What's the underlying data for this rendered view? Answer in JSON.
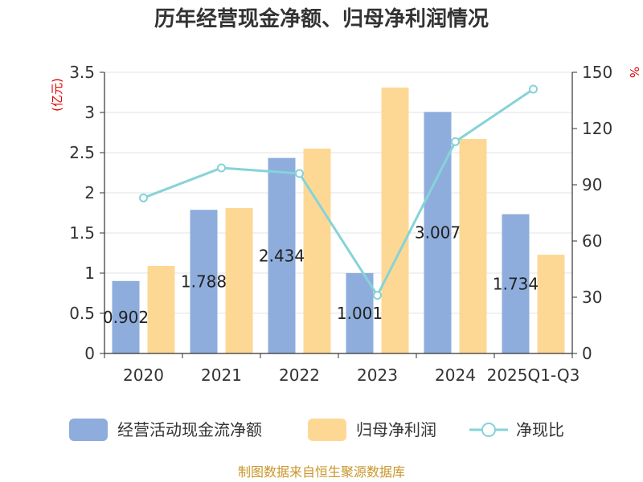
{
  "chart_data": {
    "type": "bar",
    "title": "历年经营现金净额、归母净利润情况",
    "categories": [
      "2020",
      "2021",
      "2022",
      "2023",
      "2024",
      "2025Q1-Q3"
    ],
    "series": [
      {
        "name": "经营活动现金流净额",
        "type": "bar",
        "axis": "left",
        "color": "#8eaddc",
        "values": [
          0.902,
          1.788,
          2.434,
          1.001,
          3.007,
          1.734
        ],
        "labels": [
          "0.902",
          "1.788",
          "2.434",
          "1.001",
          "3.007",
          "1.734"
        ]
      },
      {
        "name": "归母净利润",
        "type": "bar",
        "axis": "left",
        "color": "#fdd895",
        "values": [
          1.09,
          1.81,
          2.55,
          3.31,
          2.67,
          1.23
        ]
      },
      {
        "name": "净现比",
        "type": "line",
        "axis": "right",
        "color": "#86d3d8",
        "values": [
          83,
          99,
          96,
          31,
          113,
          141
        ]
      }
    ],
    "left_axis": {
      "unit": "(亿元)",
      "ylim": [
        0,
        3.5
      ],
      "ticks": [
        "0",
        "0.5",
        "1",
        "1.5",
        "2",
        "2.5",
        "3",
        "3.5"
      ]
    },
    "right_axis": {
      "unit": "%",
      "ylim": [
        0,
        150
      ],
      "ticks": [
        "0",
        "30",
        "60",
        "90",
        "120",
        "150"
      ]
    },
    "grid": true,
    "legend_position": "bottom"
  },
  "source": "制图数据来自恒生聚源数据库"
}
